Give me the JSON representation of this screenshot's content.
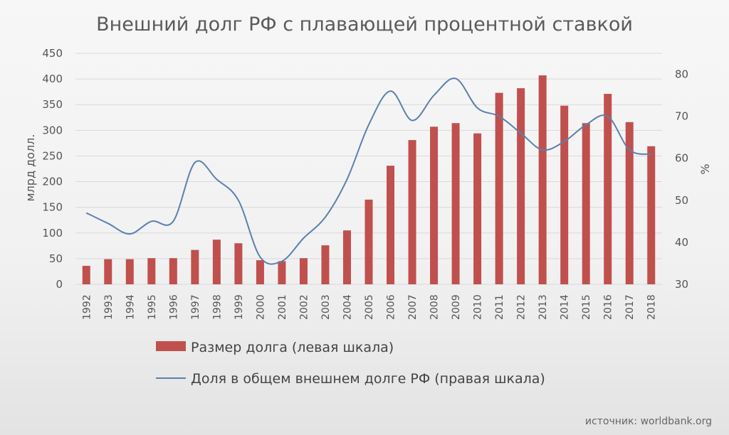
{
  "chart_data": {
    "type": "bar+line",
    "title": "Внешний долг РФ с плавающей процентной ставкой",
    "categories": [
      "1992",
      "1993",
      "1994",
      "1995",
      "1996",
      "1997",
      "1998",
      "1999",
      "2000",
      "2001",
      "2002",
      "2003",
      "2004",
      "2005",
      "2006",
      "2007",
      "2008",
      "2009",
      "2010",
      "2011",
      "2012",
      "2013",
      "2014",
      "2015",
      "2016",
      "2017",
      "2018"
    ],
    "series": [
      {
        "name": "Размер долга (левая шкала)",
        "type": "bar",
        "axis": "left",
        "color": "#c0504d",
        "values": [
          36,
          49,
          49,
          51,
          51,
          67,
          87,
          80,
          47,
          45,
          51,
          76,
          105,
          165,
          231,
          281,
          307,
          314,
          294,
          373,
          382,
          407,
          348,
          314,
          371,
          316,
          269
        ]
      },
      {
        "name": "Доля в общем внешнем долге РФ (правая шкала)",
        "type": "line",
        "axis": "right",
        "color": "#5b80ad",
        "values": [
          47,
          44.5,
          42,
          45,
          45,
          59,
          55,
          50,
          36.5,
          35.5,
          41,
          46,
          55,
          68,
          76,
          69,
          75,
          79,
          72,
          70,
          66,
          62,
          64,
          68,
          70,
          62,
          61
        ]
      }
    ],
    "left_axis": {
      "label": "млрд долл.",
      "ylim": [
        0,
        450
      ],
      "ticks": [
        "0",
        "50",
        "100",
        "150",
        "200",
        "250",
        "300",
        "350",
        "400",
        "450"
      ]
    },
    "right_axis": {
      "label": "%",
      "ylim": [
        30,
        85
      ],
      "ticks": [
        "30",
        "40",
        "50",
        "60",
        "70",
        "80"
      ]
    },
    "grid": true,
    "legend_position": "bottom",
    "source": "источник: worldbank.org"
  }
}
